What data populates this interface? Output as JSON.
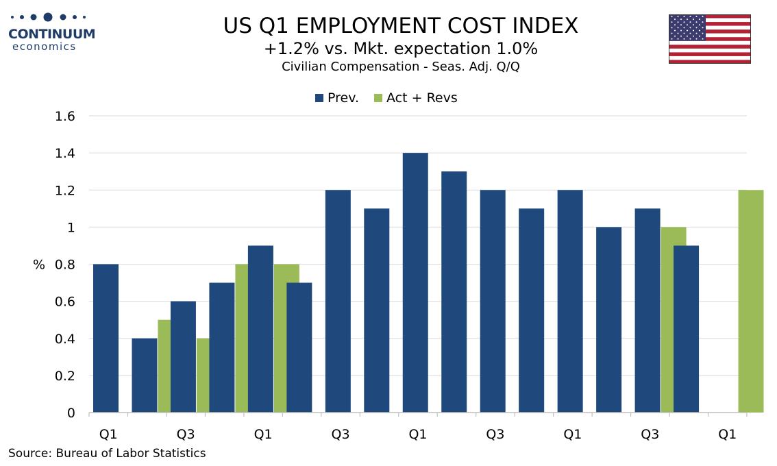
{
  "logo": {
    "word1": "CONTINUUM",
    "word2": "economics"
  },
  "title": "US Q1 EMPLOYMENT COST INDEX",
  "subtitle": "+1.2% vs. Mkt. expectation 1.0%",
  "subsubtitle": "Civilian Compensation - Seas. Adj. Q/Q",
  "flag_icon": "us-flag-icon",
  "source": "Source: Bureau of Labor Statistics",
  "colors": {
    "prev": "#1f497d",
    "act": "#9bbb59",
    "logo": "#1f3b68"
  },
  "chart_data": {
    "type": "bar",
    "categories": [
      "Q1",
      "",
      "Q3",
      "",
      "Q1",
      "",
      "Q3",
      "",
      "Q1",
      "",
      "Q3",
      "",
      "Q1",
      "",
      "Q3",
      "",
      "Q1"
    ],
    "series": [
      {
        "name": "Prev.",
        "values": [
          0.8,
          0.4,
          0.6,
          0.7,
          0.9,
          0.7,
          1.2,
          1.1,
          1.4,
          1.3,
          1.2,
          1.1,
          1.2,
          1.0,
          1.1,
          0.9,
          null
        ]
      },
      {
        "name": "Act + Revs",
        "values": [
          null,
          0.5,
          0.4,
          0.8,
          0.8,
          null,
          null,
          null,
          null,
          null,
          null,
          null,
          null,
          null,
          1.0,
          null,
          1.2
        ]
      }
    ],
    "ylabel": "%",
    "ylim": [
      0,
      1.6
    ],
    "yticks": [
      0,
      0.2,
      0.4,
      0.6,
      0.8,
      1,
      1.2,
      1.4,
      1.6
    ],
    "ytick_labels": [
      "0",
      "0.2",
      "0.4",
      "0.6",
      "0.8",
      "1",
      "1.2",
      "1.4",
      "1.6"
    ],
    "grid": true,
    "legend_position": "top-center"
  }
}
